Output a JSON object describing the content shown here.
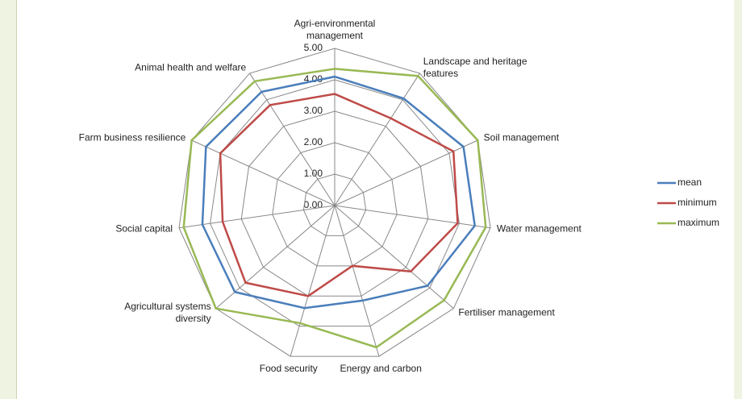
{
  "chart_data": {
    "type": "radar",
    "categories": [
      "Agri-environmental management",
      "Landscape and heritage features",
      "Soil management",
      "Water management",
      "Fertiliser management",
      "Energy and carbon",
      "Food security",
      "Agricultural systems diversity",
      "Social capital",
      "Farm business resilience",
      "Animal health and welfare"
    ],
    "series": [
      {
        "name": "mean",
        "color": "#4a7ebb",
        "values": [
          4.1,
          4.05,
          4.5,
          4.5,
          3.9,
          3.15,
          3.4,
          4.2,
          4.25,
          4.5,
          4.3
        ]
      },
      {
        "name": "minimum",
        "color": "#be4b48",
        "values": [
          3.55,
          3.3,
          4.15,
          3.95,
          3.2,
          2.0,
          3.0,
          3.75,
          3.6,
          4.0,
          3.8
        ]
      },
      {
        "name": "maximum",
        "color": "#98b954",
        "values": [
          4.35,
          4.9,
          5.0,
          4.85,
          4.6,
          4.7,
          3.9,
          5.0,
          4.85,
          5.0,
          4.7
        ]
      }
    ],
    "ylim": [
      0,
      5
    ],
    "yticks": [
      {
        "value": 0,
        "label": "0.00"
      },
      {
        "value": 1,
        "label": "1.00"
      },
      {
        "value": 2,
        "label": "2.00"
      },
      {
        "value": 3,
        "label": "3.00"
      },
      {
        "value": 4,
        "label": "4.00"
      },
      {
        "value": 5,
        "label": "5.00"
      }
    ],
    "legend": "right",
    "grid": true
  }
}
